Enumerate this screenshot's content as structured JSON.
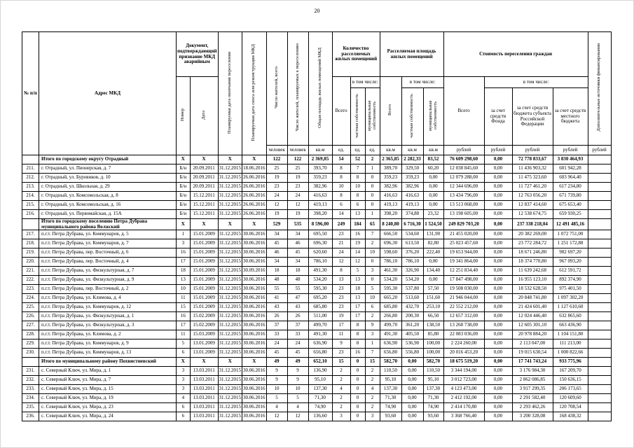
{
  "page": {
    "number": "20"
  },
  "table": {
    "headers": {
      "num": "№ п/п",
      "address": "Адрес МКД",
      "doc_group": "Документ, подтверждающий признание МКД аварийным",
      "doc_number": "Номер",
      "doc_date": "Дата",
      "resettle_end_date": "Планируемая дата окончания переселения",
      "demolition_date": "Планируемая дата сноса или реконструкции МКД",
      "residents_total": "Число жителей, всего",
      "residents_planned": "Число жителей, планируемых к переселению",
      "total_area": "Общая площадь жилых помещений МКД",
      "premises_group": "Количество расселяемых жилых помещений",
      "area_group": "Расселяемая площадь жилых помещений",
      "cost_group": "Стоимость переселения граждан",
      "including": "в том числе:",
      "total": "Всего",
      "private_prop": "частная собственность",
      "municipal_prop": "муниципальная собственность",
      "fund": "за счет средств Фонда",
      "subject_budget": "за счет средств бюджета субъекта Российской Федерации",
      "local_budget": "за счет средств местного бюджета",
      "extra_sources": "Дополнительные источники финансирования"
    },
    "units": [
      "человек",
      "человек",
      "кв.м",
      "ед.",
      "ед.",
      "ед.",
      "кв.м",
      "кв.м",
      "кв.м",
      "рублей",
      "рублей",
      "рублей",
      "рублей",
      "рублей"
    ],
    "rows": [
      {
        "summary": true,
        "cells": [
          "",
          "Итого по городскому округу  Отрадный",
          "X",
          "X",
          "X",
          "X",
          "122",
          "122",
          "2 369,85",
          "54",
          "52",
          "2",
          "2 365,85",
          "2 282,33",
          "83,52",
          "76 609 298,60",
          "0,00",
          "72 778 833,67",
          "3 830 464,93",
          ""
        ]
      },
      {
        "summary": false,
        "cells": [
          "211.",
          "г. Отрадный, ул. Пионерская, д. 7",
          "Б/н",
          "20.09.2011",
          "31.12.2015",
          "18.06.2016",
          "25",
          "25",
          "393,70",
          "8",
          "7",
          "1",
          "389,70",
          "329,50",
          "60,20",
          "12 038 845,60",
          "0,00",
          "11 436 903,32",
          "601 942,28",
          ""
        ]
      },
      {
        "summary": false,
        "cells": [
          "212.",
          "г. Отрадный, ул. Буровиков, д. 10",
          "Б/н",
          "20.09.2011",
          "31.12.2015",
          "26.06.2016",
          "19",
          "19",
          "359,23",
          "8",
          "8",
          "0",
          "359,23",
          "359,23",
          "0,00",
          "12 079 288,00",
          "0,00",
          "11 475 323,60",
          "603 964,40",
          ""
        ]
      },
      {
        "summary": false,
        "cells": [
          "213.",
          "г. Отрадный, ул. Школьная, д. 29",
          "Б/н",
          "20.09.2011",
          "31.12.2015",
          "26.06.2016",
          "23",
          "23",
          "382,96",
          "10",
          "10",
          "0",
          "382,96",
          "382,96",
          "0,00",
          "12 344 696,00",
          "0,00",
          "11 727 461,20",
          "617 234,80",
          ""
        ]
      },
      {
        "summary": false,
        "cells": [
          "214.",
          "г. Отрадный, ул. Комсомольская, д. 8",
          "Б/н",
          "15.12.2011",
          "31.12.2015",
          "26.06.2016",
          "24",
          "24",
          "416,63",
          "8",
          "8",
          "0",
          "416,63",
          "416,63",
          "0,00",
          "13 434 796,00",
          "0,00",
          "12 763 056,20",
          "671 739,80",
          ""
        ]
      },
      {
        "summary": false,
        "cells": [
          "215.",
          "г. Отрадный, ул. Комсомольская, д. 16",
          "Б/н",
          "15.12.2011",
          "31.12.2015",
          "26.06.2016",
          "12",
          "12",
          "419,13",
          "6",
          "6",
          "0",
          "419,13",
          "419,13",
          "0,00",
          "13 513 068,00",
          "0,00",
          "12 837 414,60",
          "675 653,40",
          ""
        ]
      },
      {
        "summary": false,
        "cells": [
          "216.",
          "г. Отрадный, ул. Первомайская, д. 15А",
          "Б/н",
          "15.12.2011",
          "31.12.2015",
          "26.06.2016",
          "19",
          "19",
          "398,20",
          "14",
          "13",
          "1",
          "398,20",
          "374,88",
          "23,32",
          "13 198 605,00",
          "0,00",
          "12 538 674,75",
          "659 930,25",
          ""
        ]
      },
      {
        "summary": true,
        "cells": [
          "",
          "Итого по городскому поселению Петра Дубрава муниципального района Волжский",
          "X",
          "X",
          "X",
          "X",
          "529",
          "535",
          "8 596,00",
          "249",
          "184",
          "65",
          "8 240,80",
          "6 716,30",
          "1 524,50",
          "249 829 703,20",
          "0,00",
          "237 338 218,04",
          "12 491 485,16",
          ""
        ]
      },
      {
        "summary": false,
        "cells": [
          "217.",
          "п.г.т. Петра Дубрава, ул. Коммунаров, д. 5",
          "1",
          "15.01.2009",
          "31.12.2015",
          "30.06.2016",
          "34",
          "34",
          "695,50",
          "23",
          "16",
          "7",
          "666,50",
          "534,60",
          "131,90",
          "21 455 020,00",
          "0,00",
          "20 382 269,00",
          "1 072 751,00",
          ""
        ]
      },
      {
        "summary": false,
        "cells": [
          "218.",
          "п.г.т. Петра Дубрава, ул. Коммунаров, д. 7",
          "3",
          "15.01.2009",
          "31.12.2015",
          "30.06.2016",
          "45",
          "46",
          "696,30",
          "21",
          "19",
          "2",
          "696,30",
          "613,50",
          "82,80",
          "25 023 457,60",
          "0,00",
          "23 772 284,72",
          "1 251 172,88",
          ""
        ]
      },
      {
        "summary": false,
        "cells": [
          "219.",
          "п.г.т. Петра Дубрава, пер. Восточный, д. 6",
          "16",
          "15.01.2009",
          "31.12.2015",
          "30.06.2016",
          "46",
          "45",
          "620,60",
          "24",
          "14",
          "10",
          "598,60",
          "376,20",
          "222,40",
          "19 653 944,00",
          "0,00",
          "18 671 246,80",
          "982 697,20",
          ""
        ]
      },
      {
        "summary": false,
        "cells": [
          "220.",
          "п.г.т. Петра Дубрава, пер. Восточный, д. 4",
          "17",
          "15.01.2009",
          "31.12.2015",
          "30.06.2016",
          "34",
          "34",
          "786,10",
          "12",
          "12",
          "0",
          "786,10",
          "786,10",
          "0,00",
          "19 341 864,00",
          "0,00",
          "18 374 770,80",
          "967 093,20",
          ""
        ]
      },
      {
        "summary": false,
        "cells": [
          "221.",
          "п.г.т. Петра Дубрава, ул. Физкультурная, д. 7",
          "18",
          "15.01.2009",
          "31.12.2015",
          "30.09.2016",
          "18",
          "18",
          "491,30",
          "8",
          "5",
          "3",
          "461,30",
          "326,90",
          "134,40",
          "12 251 834,40",
          "0,00",
          "11 639 242,68",
          "612 591,72",
          ""
        ]
      },
      {
        "summary": false,
        "cells": [
          "222.",
          "п.г.т. Петра Дубрава, ул. Физкультурная, д. 9",
          "13",
          "15.01.2009",
          "31.12.2015",
          "30.06.2016",
          "48",
          "48",
          "534,20",
          "13",
          "13",
          "0",
          "534,20",
          "534,20",
          "0,00",
          "17 847 498,00",
          "0,00",
          "16 955 123,10",
          "892 374,90",
          ""
        ]
      },
      {
        "summary": false,
        "cells": [
          "223.",
          "п.г.т. Петра Дубрава, пер. Восточный, д. 2",
          "10",
          "15.01.2009",
          "31.12.2015",
          "30.06.2016",
          "55",
          "55",
          "595,30",
          "23",
          "18",
          "5",
          "595,30",
          "537,80",
          "57,50",
          "19 508 030,00",
          "0,00",
          "18 532 628,50",
          "975 401,50",
          ""
        ]
      },
      {
        "summary": false,
        "cells": [
          "224.",
          "п.г.т. Петра Дубрава, ул. Климова, д. 4",
          "11",
          "15.01.2009",
          "31.12.2015",
          "30.06.2016",
          "41",
          "47",
          "695,20",
          "23",
          "13",
          "10",
          "665,20",
          "513,60",
          "151,60",
          "21 946 044,00",
          "0,00",
          "20 848 741,80",
          "1 097 302,20",
          ""
        ]
      },
      {
        "summary": false,
        "cells": [
          "225.",
          "п.г.т. Петра Дубрава, ул. Коммунаров, д. 12",
          "15",
          "15.01.2009",
          "31.12.2015",
          "30.06.2016",
          "43",
          "43",
          "685,80",
          "23",
          "17",
          "6",
          "685,80",
          "432,70",
          "253,10",
          "22 552 212,00",
          "0,00",
          "21 424 601,40",
          "1 127 610,60",
          ""
        ]
      },
      {
        "summary": false,
        "cells": [
          "226.",
          "п.г.т. Петра Дубрава, ул. Физкультурная, д. 1",
          "16",
          "15.02.2009",
          "31.12.2015",
          "30.06.2016",
          "26",
          "26",
          "511,00",
          "19",
          "17",
          "2",
          "266,80",
          "200,30",
          "66,50",
          "12 657 312,00",
          "0,00",
          "12 024 446,40",
          "632 865,60",
          ""
        ]
      },
      {
        "summary": false,
        "cells": [
          "227.",
          "п.г.т. Петра Дубрава, ул. Физкультурная, д. 3",
          "17",
          "15.02.2009",
          "31.12.2015",
          "30.06.2016",
          "37",
          "37",
          "499,70",
          "17",
          "8",
          "9",
          "499,70",
          "361,20",
          "138,50",
          "13 268 738,00",
          "0,00",
          "12 605 301,10",
          "663 436,90",
          ""
        ]
      },
      {
        "summary": false,
        "cells": [
          "228.",
          "п.г.т. Петра Дубрава, ул. Климова, д. 2",
          "11",
          "15.03.2009",
          "31.12.2015",
          "30.06.2016",
          "33",
          "33",
          "491,30",
          "11",
          "8",
          "3",
          "491,30",
          "405,50",
          "85,80",
          "22 083 036,00",
          "0,00",
          "20 978 884,20",
          "1 104 151,80",
          ""
        ]
      },
      {
        "summary": false,
        "cells": [
          "229.",
          "п.г.т. Петра Дубрава, ул. Коммунаров, д. 9",
          "5",
          "13.01.2009",
          "31.12.2015",
          "30.06.2016",
          "24",
          "24",
          "636,90",
          "9",
          "8",
          "1",
          "636,90",
          "536,90",
          "100,00",
          "2 224 260,00",
          "0,00",
          "2 113 047,00",
          "111 213,00",
          ""
        ]
      },
      {
        "summary": false,
        "cells": [
          "230.",
          "п.г.т. Петра Дубрава, ул. Коммунаров, д. 13",
          "6",
          "13.01.2009",
          "31.12.2015",
          "30.06.2016",
          "45",
          "45",
          "656,80",
          "23",
          "16",
          "7",
          "656,80",
          "556,80",
          "100,00",
          "20 016 453,20",
          "0,00",
          "19 015 630,54",
          "1 000 822,66",
          ""
        ]
      },
      {
        "summary": true,
        "cells": [
          "",
          "Итого по муниципальному району Похвистневский",
          "X",
          "X",
          "X",
          "X",
          "49",
          "49",
          "652,10",
          "15",
          "0",
          "15",
          "582,70",
          "0,00",
          "582,70",
          "18 675 519,20",
          "0,00",
          "17 741 743,24",
          "933 775,96",
          ""
        ]
      },
      {
        "summary": false,
        "cells": [
          "231.",
          "с. Северный Ключ, ул. Мира, д. 1",
          "3",
          "13.03.2011",
          "31.12.2015",
          "30.06.2016",
          "9",
          "9",
          "136,90",
          "2",
          "0",
          "2",
          "110,50",
          "0,00",
          "110,50",
          "3 344 194,00",
          "0,00",
          "3 176 984,30",
          "167 209,70",
          ""
        ]
      },
      {
        "summary": false,
        "cells": [
          "232.",
          "с. Северный Ключ, ул. Мира, д. 7",
          "3",
          "13.03.2011",
          "31.12.2015",
          "30.06.2016",
          "9",
          "9",
          "95,10",
          "2",
          "0",
          "2",
          "95,10",
          "0,00",
          "95,10",
          "3 012 723,00",
          "0,00",
          "2 862 086,85",
          "150 636,15",
          ""
        ]
      },
      {
        "summary": false,
        "cells": [
          "233.",
          "с. Северный Ключ, ул. Мира, д. 15",
          "3",
          "13.03.2011",
          "31.12.2015",
          "30.06.2016",
          "10",
          "10",
          "137,30",
          "4",
          "0",
          "4",
          "137,30",
          "0,00",
          "137,30",
          "4 123 473,00",
          "0,00",
          "3 917 299,35",
          "206 173,65",
          ""
        ]
      },
      {
        "summary": false,
        "cells": [
          "234.",
          "с. Северный Ключ, ул. Мира, д. 19",
          "4",
          "13.03.2011",
          "31.12.2015",
          "30.06.2016",
          "5",
          "5",
          "71,30",
          "2",
          "0",
          "2",
          "71,30",
          "0,00",
          "71,30",
          "2 412 192,00",
          "0,00",
          "2 291 582,40",
          "120 609,60",
          ""
        ]
      },
      {
        "summary": false,
        "cells": [
          "235.",
          "с. Северный Ключ, ул. Мира, д. 23",
          "6",
          "13.03.2011",
          "31.12.2015",
          "30.06.2016",
          "4",
          "4",
          "74,90",
          "2",
          "0",
          "2",
          "74,90",
          "0,00",
          "74,90",
          "2 414 170,80",
          "0,00",
          "2 293 462,26",
          "120 708,54",
          ""
        ]
      },
      {
        "summary": false,
        "cells": [
          "236.",
          "с. Северный Ключ, ул. Мира, д. 24",
          "6",
          "13.03.2011",
          "31.12.2015",
          "30.06.2016",
          "12",
          "12",
          "136,60",
          "3",
          "0",
          "3",
          "93,60",
          "0,00",
          "93,60",
          "3 368 766,40",
          "0,00",
          "3 200 328,08",
          "168 438,32",
          ""
        ]
      }
    ]
  }
}
